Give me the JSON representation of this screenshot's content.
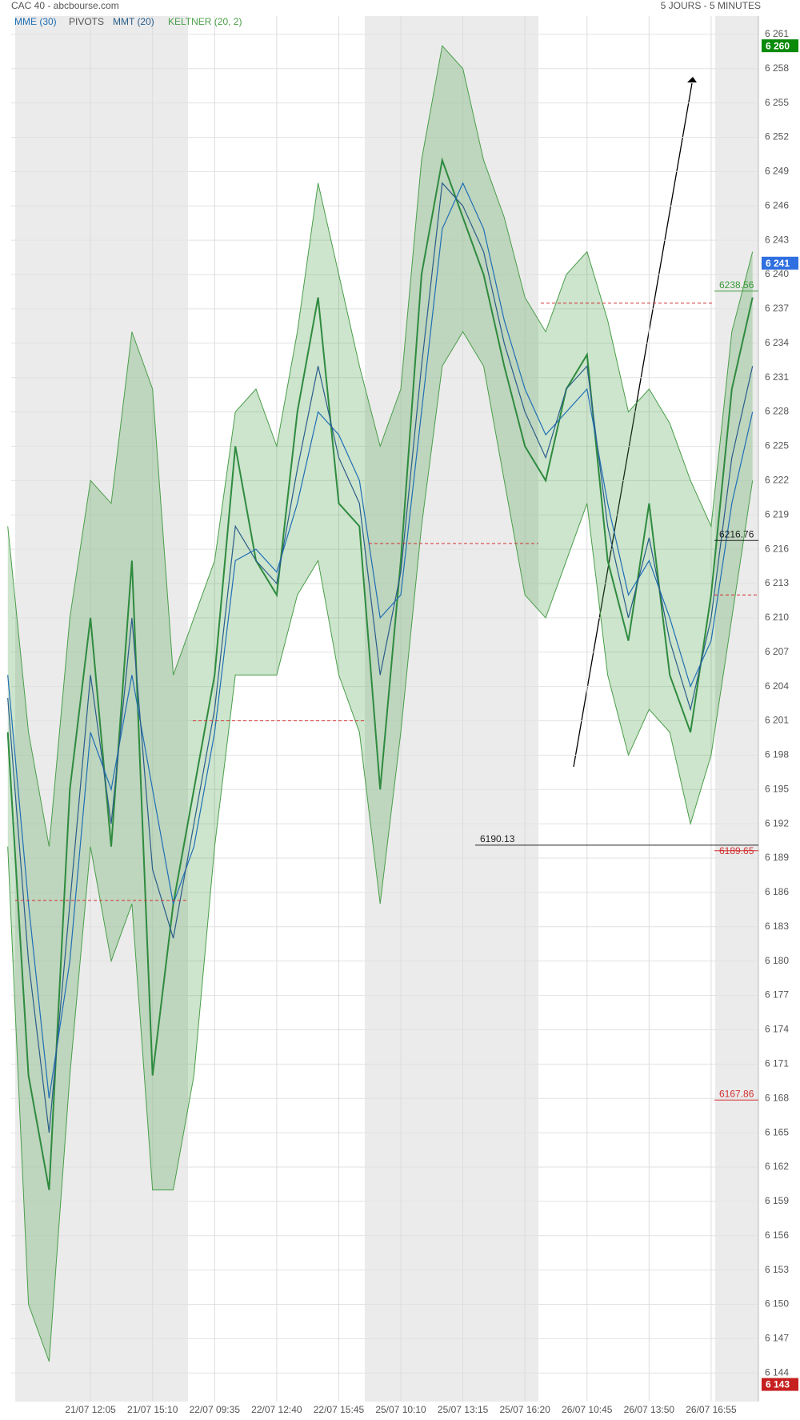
{
  "chart_data": {
    "type": "line",
    "title": "CAC 40 - abcbourse.com",
    "subtitle": "5 JOURS - 5 MINUTES",
    "categories": [
      null,
      null,
      null,
      null,
      "21/07 12:05",
      null,
      null,
      "21/07 15:10",
      null,
      null,
      "22/07 09:35",
      null,
      null,
      "22/07 12:40",
      null,
      null,
      "22/07 15:45",
      null,
      null,
      "25/07 10:10",
      null,
      null,
      "25/07 13:15",
      null,
      null,
      "25/07 16:20",
      null,
      null,
      "26/07 10:45",
      null,
      null,
      "26/07 13:50",
      null,
      null,
      "26/07 16:55",
      null,
      null
    ],
    "series": [
      {
        "color": "#2e8b3e",
        "values": [
          6200,
          6170,
          6160,
          6195,
          6210,
          6190,
          6215,
          6170,
          6185,
          6195,
          6205,
          6225,
          6215,
          6212,
          6228,
          6238,
          6220,
          6218,
          6195,
          6215,
          6240,
          6250,
          6245,
          6240,
          6232,
          6225,
          6222,
          6230,
          6233,
          6215,
          6208,
          6220,
          6205,
          6200,
          6212,
          6230,
          6238
        ]
      },
      {
        "name": "MME (30)",
        "color": "#1f6fb5",
        "values": [
          6205,
          6185,
          6168,
          6180,
          6200,
          6195,
          6205,
          6195,
          6185,
          6190,
          6200,
          6215,
          6216,
          6214,
          6220,
          6228,
          6226,
          6222,
          6210,
          6212,
          6228,
          6244,
          6248,
          6244,
          6236,
          6230,
          6226,
          6228,
          6230,
          6220,
          6212,
          6215,
          6210,
          6204,
          6208,
          6220,
          6228
        ]
      },
      {
        "name": "MMT (20)",
        "color": "#2a5d8a",
        "values": [
          6203,
          6180,
          6165,
          6185,
          6205,
          6192,
          6210,
          6188,
          6182,
          6192,
          6202,
          6218,
          6215,
          6213,
          6223,
          6232,
          6224,
          6220,
          6205,
          6214,
          6232,
          6248,
          6246,
          6242,
          6234,
          6228,
          6224,
          6230,
          6232,
          6218,
          6210,
          6217,
          6208,
          6202,
          6210,
          6224,
          6232
        ]
      },
      {
        "name": "KELTNER (20, 2)",
        "color": "#4a9e4a",
        "upper": [
          6218,
          6200,
          6190,
          6210,
          6222,
          6220,
          6235,
          6230,
          6205,
          6210,
          6215,
          6228,
          6230,
          6225,
          6235,
          6248,
          6240,
          6232,
          6225,
          6230,
          6250,
          6260,
          6258,
          6250,
          6245,
          6238,
          6235,
          6240,
          6242,
          6236,
          6228,
          6230,
          6227,
          6222,
          6218,
          6235,
          6242
        ],
        "lower": [
          6190,
          6150,
          6145,
          6170,
          6190,
          6180,
          6185,
          6160,
          6160,
          6170,
          6190,
          6205,
          6205,
          6205,
          6212,
          6215,
          6205,
          6200,
          6185,
          6200,
          6218,
          6232,
          6235,
          6232,
          6222,
          6212,
          6210,
          6215,
          6220,
          6205,
          6198,
          6202,
          6200,
          6192,
          6198,
          6210,
          6222
        ]
      }
    ],
    "pivots": {
      "name": "PIVOTS",
      "color": "#d32f2f",
      "values": [
        6185.3,
        6201,
        6216.5,
        6237.5,
        6212
      ]
    },
    "annotations": [
      {
        "value": 6238.56,
        "color": "#3a9a3a"
      },
      {
        "value": 6216.76,
        "color": "#222222"
      },
      {
        "value": 6190.13,
        "color": "#222222"
      },
      {
        "value": 6189.65,
        "color": "#d32f2f"
      },
      {
        "value": 6167.86,
        "color": "#d32f2f"
      }
    ],
    "badges": [
      {
        "value": 6260,
        "label": "6 260",
        "color": "#0a8a0a"
      },
      {
        "value": 6241,
        "label": "6 241",
        "color": "#2f6fe0"
      },
      {
        "value": 6143,
        "label": "6 143",
        "color": "#c62020"
      }
    ],
    "ylim": [
      6141.5,
      6262.6
    ],
    "yticks": [
      {
        "value": 6144,
        "label": "6 144"
      },
      {
        "value": 6147,
        "label": "6 147"
      },
      {
        "value": 6150,
        "label": "6 150"
      },
      {
        "value": 6153,
        "label": "6 153"
      },
      {
        "value": 6156,
        "label": "6 156"
      },
      {
        "value": 6159,
        "label": "6 159"
      },
      {
        "value": 6162,
        "label": "6 162"
      },
      {
        "value": 6165,
        "label": "6 165"
      },
      {
        "value": 6168,
        "label": "6 168"
      },
      {
        "value": 6171,
        "label": "6 171"
      },
      {
        "value": 6174,
        "label": "6 174"
      },
      {
        "value": 6177,
        "label": "6 177"
      },
      {
        "value": 6180,
        "label": "6 180"
      },
      {
        "value": 6183,
        "label": "6 183"
      },
      {
        "value": 6186,
        "label": "6 186"
      },
      {
        "value": 6189,
        "label": "6 189"
      },
      {
        "value": 6192,
        "label": "6 192"
      },
      {
        "value": 6195,
        "label": "6 195"
      },
      {
        "value": 6198,
        "label": "6 198"
      },
      {
        "value": 6201,
        "label": "6 201"
      },
      {
        "value": 6204,
        "label": "6 204"
      },
      {
        "value": 6207,
        "label": "6 207"
      },
      {
        "value": 6210,
        "label": "6 210"
      },
      {
        "value": 6213,
        "label": "6 213"
      },
      {
        "value": 6216,
        "label": "6 216"
      },
      {
        "value": 6219,
        "label": "6 219"
      },
      {
        "value": 6222,
        "label": "6 222"
      },
      {
        "value": 6225,
        "label": "6 225"
      },
      {
        "value": 6228,
        "label": "6 228"
      },
      {
        "value": 6231,
        "label": "6 231"
      },
      {
        "value": 6234,
        "label": "6 234"
      },
      {
        "value": 6237,
        "label": "6 237"
      },
      {
        "value": 6240,
        "label": "6 240"
      },
      {
        "value": 6243,
        "label": "6 243"
      },
      {
        "value": 6246,
        "label": "6 246"
      },
      {
        "value": 6249,
        "label": "6 249"
      },
      {
        "value": 6252,
        "label": "6 252"
      },
      {
        "value": 6255,
        "label": "6 255"
      },
      {
        "value": 6258,
        "label": "6 258"
      },
      {
        "value": 6261,
        "label": "6 261"
      }
    ],
    "grid": true
  }
}
